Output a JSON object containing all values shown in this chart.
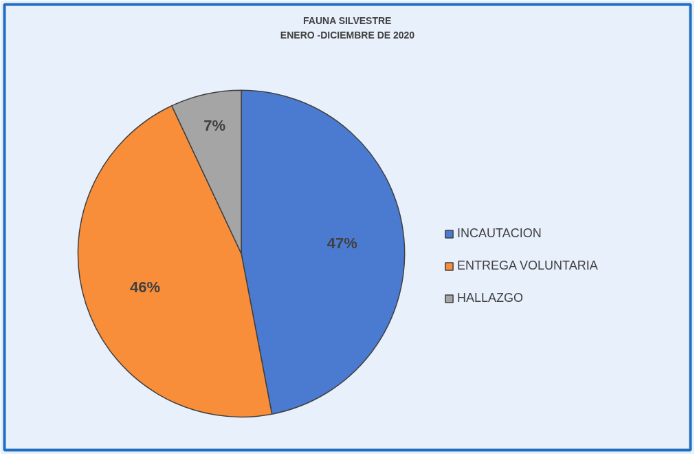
{
  "chart_data": {
    "type": "pie",
    "title": "FAUNA SILVESTRE\nENERO -DICIEMBRE DE 2020",
    "categories": [
      "INCAUTACION",
      "ENTREGA VOLUNTARIA",
      "HALLAZGO"
    ],
    "values": [
      47,
      46,
      7
    ],
    "colors": [
      "#4a7bd0",
      "#f98e3a",
      "#a5a5a5"
    ],
    "value_labels": [
      "47%",
      "46%",
      "7%"
    ],
    "legend": "right"
  }
}
